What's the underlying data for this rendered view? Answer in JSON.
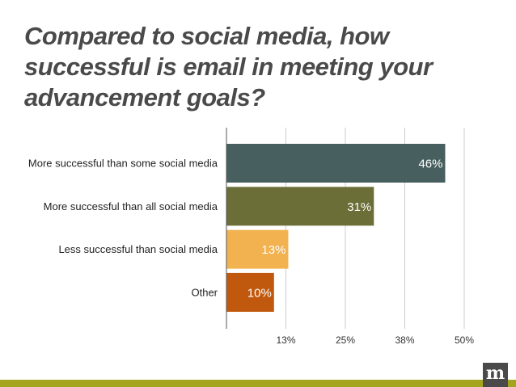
{
  "chart_data": {
    "type": "bar",
    "orientation": "horizontal",
    "title_lines": [
      "Compared to social media, how",
      "successful is email in meeting your",
      "advancement goals?"
    ],
    "categories": [
      "More successful than some social media",
      "More successful than all social media",
      "Less successful than social media",
      "Other"
    ],
    "values": [
      46,
      31,
      13,
      10
    ],
    "data_labels": [
      "46%",
      "31%",
      "13%",
      "10%"
    ],
    "colors": [
      "#475f5e",
      "#6b6e37",
      "#f1b24f",
      "#c0590d"
    ],
    "x_ticks": [
      12.5,
      25,
      37.5,
      50
    ],
    "x_tick_labels": [
      "13%",
      "25%",
      "38%",
      "50%"
    ],
    "xlim": [
      0,
      50
    ],
    "grid": true,
    "legend": "none"
  },
  "logo_letter": "m",
  "accent_color": "#a4a51c"
}
